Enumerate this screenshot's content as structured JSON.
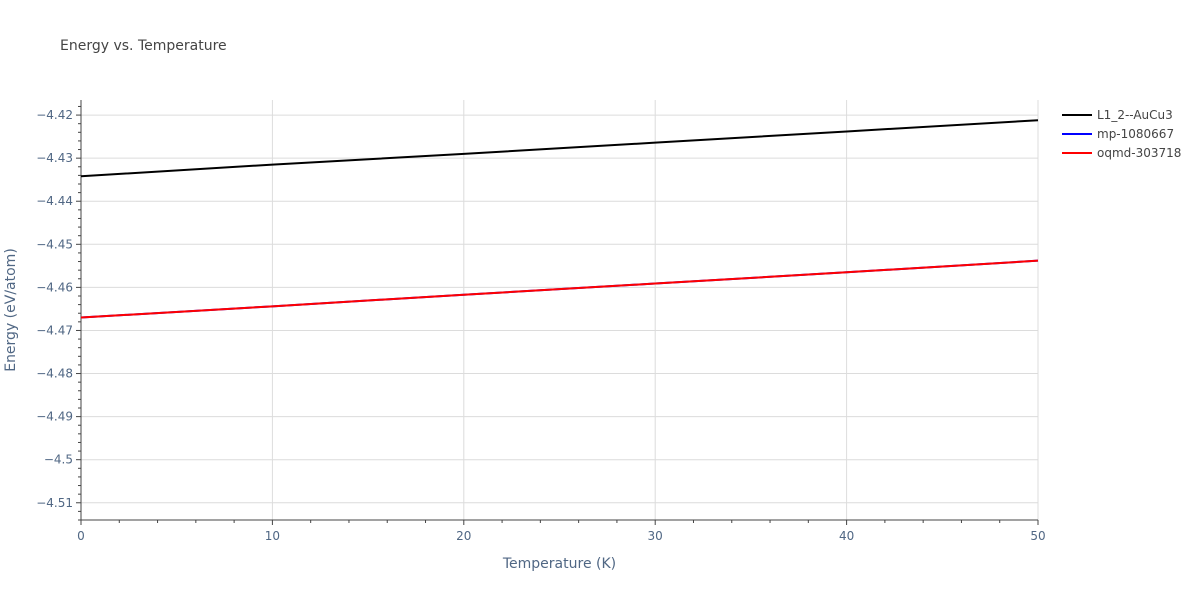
{
  "chart_data": {
    "type": "line",
    "title": "Energy vs. Temperature",
    "xlabel": "Temperature (K)",
    "ylabel": "Energy (eV/atom)",
    "xlim": [
      0,
      50
    ],
    "ylim": [
      -4.514,
      -4.4165
    ],
    "x_ticks": [
      0,
      10,
      20,
      30,
      40,
      50
    ],
    "x_tick_labels": [
      "0",
      "10",
      "20",
      "30",
      "40",
      "50"
    ],
    "y_ticks": [
      -4.51,
      -4.5,
      -4.49,
      -4.48,
      -4.47,
      -4.46,
      -4.45,
      -4.44,
      -4.43,
      -4.42
    ],
    "y_tick_labels": [
      "−4.51",
      "−4.5",
      "−4.49",
      "−4.48",
      "−4.47",
      "−4.46",
      "−4.45",
      "−4.44",
      "−4.43",
      "−4.42"
    ],
    "grid": true,
    "legend_position": "top-right",
    "series": [
      {
        "name": "L1_2--AuCu3",
        "color": "#000000",
        "x": [
          0,
          10,
          20,
          30,
          40,
          50
        ],
        "y": [
          -4.4342,
          -4.4315,
          -4.429,
          -4.4264,
          -4.4238,
          -4.4212
        ]
      },
      {
        "name": "mp-1080667",
        "color": "#0000ff",
        "x": [
          0,
          10,
          20,
          30,
          40,
          50
        ],
        "y": [
          -4.467,
          -4.4644,
          -4.4617,
          -4.4591,
          -4.4565,
          -4.4538
        ]
      },
      {
        "name": "oqmd-303718",
        "color": "#ff0000",
        "x": [
          0,
          10,
          20,
          30,
          40,
          50
        ],
        "y": [
          -4.467,
          -4.4644,
          -4.4617,
          -4.4591,
          -4.4565,
          -4.4538
        ]
      }
    ]
  }
}
